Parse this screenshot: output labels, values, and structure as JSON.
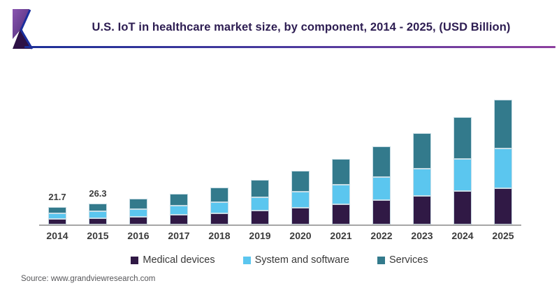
{
  "header": {
    "title": "U.S. IoT in healthcare market size, by component, 2014 - 2025, (USD Billion)",
    "title_color": "#2d1d52",
    "accent_line_colors": [
      "#1c2f97",
      "#4b3a9e",
      "#8d3f9f"
    ],
    "logo": {
      "purple_light": "#8a55b0",
      "purple_dark": "#4a2a74",
      "triangle": "#2d1145",
      "edge_blue": "#1b2f9e"
    }
  },
  "chart_data": {
    "type": "bar",
    "stacked": true,
    "title": "U.S. IoT in healthcare market size, by component, 2014 - 2025, (USD Billion)",
    "unit": "USD Billion",
    "categories": [
      "2014",
      "2015",
      "2016",
      "2017",
      "2018",
      "2019",
      "2020",
      "2021",
      "2022",
      "2023",
      "2024",
      "2025"
    ],
    "series": [
      {
        "name": "Medical devices",
        "color": "#301945",
        "values": [
          6.8,
          8.2,
          9.9,
          12.0,
          14.4,
          17.3,
          20.8,
          25.4,
          30.3,
          35.5,
          41.6,
          45.3
        ]
      },
      {
        "name": "System and software",
        "color": "#5BC6EF",
        "values": [
          6.9,
          8.1,
          9.6,
          11.6,
          13.9,
          16.6,
          19.9,
          24.4,
          29.1,
          34.1,
          40.0,
          49.6
        ]
      },
      {
        "name": "Services",
        "color": "#337A8C",
        "values": [
          8.0,
          10.0,
          12.4,
          15.1,
          18.1,
          21.8,
          26.1,
          32.0,
          38.0,
          44.6,
          52.3,
          61.0
        ]
      }
    ],
    "totals_estimated": [
      21.7,
      26.3,
      31.9,
      38.7,
      46.4,
      55.7,
      66.8,
      81.8,
      97.4,
      114.2,
      133.9,
      155.9
    ],
    "visible_total_labels": [
      "21.7",
      "26.3",
      "",
      "",
      "",
      "",
      "",
      "",
      "",
      "",
      "",
      ""
    ],
    "legend_position": "bottom",
    "y_axis_hidden": true,
    "axis_color": "#a6a6a6",
    "label_color": "#3b3b3b"
  },
  "source": {
    "text": "Source: www.grandviewresearch.com"
  }
}
